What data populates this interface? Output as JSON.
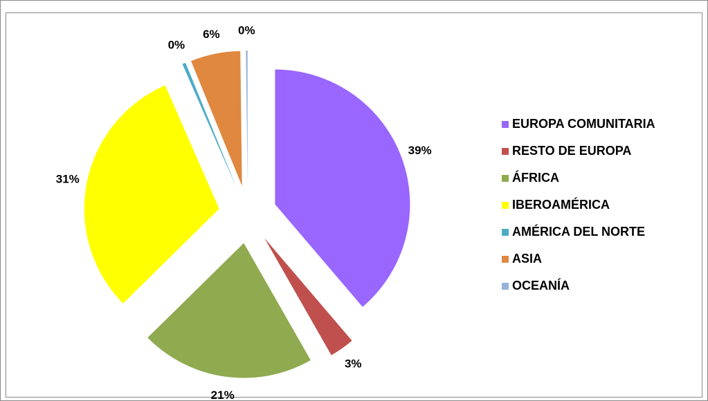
{
  "chart_data": {
    "type": "pie",
    "categories": [
      "EUROPA COMUNITARIA",
      "RESTO DE EUROPA",
      "ÁFRICA",
      "IBEROAMÉRICA",
      "AMÉRICA DEL NORTE",
      "ASIA",
      "OCEANÍA"
    ],
    "values": [
      39,
      3,
      21,
      31,
      0.4,
      6,
      0.2
    ],
    "value_labels": [
      "39%",
      "3%",
      "21%",
      "31%",
      "0%",
      "6%",
      "0%"
    ],
    "colors": [
      "#9966ff",
      "#c0504d",
      "#8faa4f",
      "#ffff00",
      "#4bacc6",
      "#e0883f",
      "#95b3d7"
    ],
    "legend": "right"
  }
}
